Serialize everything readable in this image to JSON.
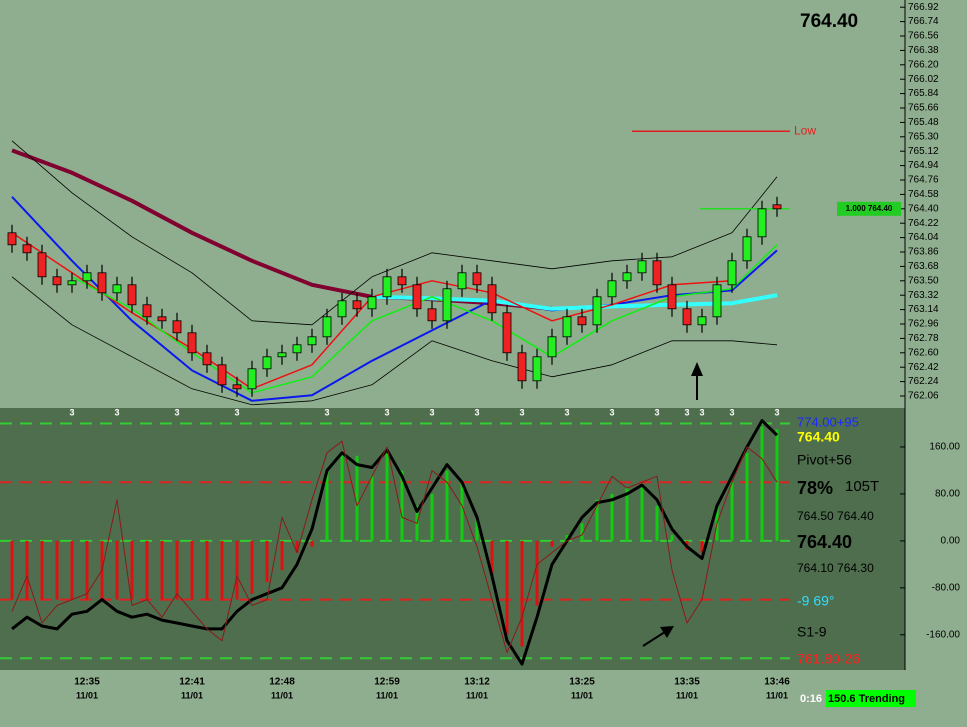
{
  "chart_data": [
    {
      "type": "candlestick",
      "price_label": "764.40",
      "open": [
        764.1,
        763.95,
        763.85,
        763.55,
        763.45,
        763.5,
        763.6,
        763.35,
        763.45,
        763.2,
        763.05,
        763.0,
        762.85,
        762.6,
        762.45,
        762.2,
        762.15,
        762.4,
        762.55,
        762.6,
        762.7,
        762.8,
        763.05,
        763.25,
        763.15,
        763.3,
        763.55,
        763.45,
        763.15,
        763.0,
        763.4,
        763.6,
        763.45,
        763.1,
        762.6,
        762.25,
        762.55,
        762.8,
        763.05,
        762.95,
        763.3,
        763.5,
        763.6,
        763.75,
        763.45,
        763.15,
        762.95,
        763.05,
        763.45,
        763.75,
        764.05,
        764.45
      ],
      "high": [
        764.2,
        764.05,
        763.95,
        763.65,
        763.6,
        763.7,
        763.7,
        763.55,
        763.55,
        763.3,
        763.15,
        763.1,
        762.95,
        762.7,
        762.55,
        762.3,
        762.5,
        762.65,
        762.7,
        762.8,
        762.9,
        763.15,
        763.35,
        763.35,
        763.4,
        763.65,
        763.65,
        763.55,
        763.25,
        763.5,
        763.7,
        763.7,
        763.55,
        763.2,
        762.7,
        762.65,
        762.9,
        763.15,
        763.15,
        763.4,
        763.6,
        763.7,
        763.85,
        763.85,
        763.55,
        763.25,
        763.15,
        763.55,
        763.85,
        764.15,
        764.5,
        764.55
      ],
      "low": [
        763.85,
        763.75,
        763.45,
        763.35,
        763.35,
        763.4,
        763.25,
        763.25,
        763.1,
        762.95,
        762.9,
        762.75,
        762.5,
        762.35,
        762.1,
        762.05,
        762.05,
        762.3,
        762.45,
        762.5,
        762.6,
        762.7,
        762.95,
        763.05,
        763.05,
        763.2,
        763.35,
        763.05,
        762.9,
        762.9,
        763.3,
        763.35,
        763.0,
        762.5,
        762.15,
        762.15,
        762.45,
        762.7,
        762.85,
        762.85,
        763.2,
        763.4,
        763.5,
        763.35,
        763.05,
        762.85,
        762.85,
        762.95,
        763.35,
        763.65,
        763.95,
        764.3
      ],
      "close": [
        763.95,
        763.85,
        763.55,
        763.45,
        763.5,
        763.6,
        763.35,
        763.45,
        763.2,
        763.05,
        763.0,
        762.85,
        762.6,
        762.45,
        762.2,
        762.15,
        762.4,
        762.55,
        762.6,
        762.7,
        762.8,
        763.05,
        763.25,
        763.15,
        763.3,
        763.55,
        763.45,
        763.15,
        763.0,
        763.4,
        763.6,
        763.45,
        763.1,
        762.6,
        762.25,
        762.55,
        762.8,
        763.05,
        762.95,
        763.3,
        763.5,
        763.6,
        763.75,
        763.45,
        763.15,
        762.95,
        763.05,
        763.45,
        763.75,
        764.05,
        764.4,
        764.4
      ],
      "up_color": "#22ee22",
      "down_color": "#ee2222",
      "ylim": [
        761.91,
        767.01
      ],
      "yticks": [
        766.92,
        766.74,
        766.56,
        766.38,
        {
          "value": 766.2,
          "label": "766.20"
        },
        766.02,
        765.84,
        765.66,
        765.48,
        {
          "value": 765.3,
          "label": "765.30"
        },
        765.12,
        764.94,
        764.76,
        764.58,
        {
          "value": 764.4,
          "label": "764.40"
        },
        764.22,
        764.04,
        763.86,
        763.68,
        {
          "value": 763.5,
          "label": "763.50"
        },
        763.32,
        763.14,
        762.96,
        762.78,
        {
          "value": 762.6,
          "label": "762.60"
        },
        762.42,
        762.24,
        762.06
      ],
      "overlay_x": [
        0,
        4,
        8,
        12,
        16,
        20,
        24,
        28,
        32,
        36,
        40,
        44,
        48,
        51
      ],
      "overlays": [
        {
          "color": "#800030",
          "values": [
            765.13,
            764.85,
            764.5,
            764.1,
            763.75,
            763.45,
            763.3,
            763.27,
            763.22,
            763.15,
            null,
            null,
            null,
            null
          ]
        },
        {
          "color": "#0a1aee",
          "values": [
            764.55,
            763.75,
            763.0,
            762.38,
            762.0,
            762.07,
            762.5,
            762.88,
            763.26,
            763.13,
            763.2,
            763.32,
            763.38,
            763.88
          ]
        },
        {
          "color": "#33ffff",
          "values": [
            null,
            null,
            null,
            null,
            null,
            null,
            763.3,
            763.28,
            763.25,
            763.15,
            763.18,
            763.2,
            763.22,
            763.32
          ]
        },
        {
          "color": "#ee1111",
          "values": [
            764.1,
            763.6,
            763.1,
            762.65,
            762.15,
            762.45,
            763.3,
            763.5,
            763.35,
            763.0,
            763.2,
            763.45,
            763.5,
            null
          ]
        },
        {
          "color": "#11ee11",
          "values": [
            null,
            763.55,
            763.15,
            762.6,
            762.1,
            762.3,
            763.0,
            763.3,
            763.0,
            762.55,
            763.0,
            763.3,
            763.4,
            763.95
          ]
        },
        {
          "color": "#000000",
          "values": [
            765.25,
            764.6,
            764.05,
            763.6,
            763.0,
            762.95,
            763.55,
            763.85,
            763.75,
            763.65,
            763.75,
            763.8,
            764.1,
            764.8
          ]
        },
        {
          "color": "#000000",
          "values": [
            763.55,
            762.95,
            762.55,
            762.15,
            761.95,
            762.0,
            762.2,
            762.75,
            762.5,
            762.3,
            762.45,
            762.75,
            762.75,
            762.7
          ]
        }
      ],
      "hlines": [
        {
          "value": 765.37,
          "color": "#e02020",
          "label": "Low"
        },
        {
          "value": 764.4,
          "color": "#22dd22",
          "label": "1.000 764.40"
        }
      ]
    },
    {
      "type": "oscillator",
      "categories": [
        null,
        null,
        null,
        null,
        null,
        "12:35",
        null,
        null,
        null,
        null,
        null,
        null,
        "12:41",
        null,
        null,
        null,
        null,
        null,
        "12:48",
        null,
        null,
        null,
        null,
        null,
        null,
        "12:59",
        null,
        null,
        null,
        null,
        null,
        "13:12",
        null,
        null,
        null,
        null,
        null,
        null,
        "13:25",
        null,
        null,
        null,
        null,
        null,
        null,
        "13:35",
        null,
        null,
        null,
        null,
        null,
        "13:46"
      ],
      "dates": [
        null,
        null,
        null,
        null,
        null,
        "11/01",
        null,
        null,
        null,
        null,
        null,
        null,
        "11/01",
        null,
        null,
        null,
        null,
        null,
        "11/01",
        null,
        null,
        null,
        null,
        null,
        null,
        "11/01",
        null,
        null,
        null,
        null,
        null,
        "11/01",
        null,
        null,
        null,
        null,
        null,
        null,
        "11/01",
        null,
        null,
        null,
        null,
        null,
        null,
        "11/01",
        null,
        null,
        null,
        null,
        null,
        "11/01"
      ],
      "ylim": [
        -220,
        223
      ],
      "yticks": [
        {
          "value": 160,
          "label": "160.00"
        },
        {
          "value": 80,
          "label": "80.00"
        },
        {
          "value": 0,
          "label": "0.00"
        },
        {
          "value": -80,
          "label": "-80.00"
        },
        {
          "value": -160,
          "label": "-160.00"
        }
      ],
      "levels": [
        {
          "value": 200,
          "color": "#33cc33"
        },
        {
          "value": 100,
          "color": "#dd2222"
        },
        {
          "value": 0,
          "color": "#33cc33"
        },
        {
          "value": -100,
          "color": "#dd2222"
        },
        {
          "value": -200,
          "color": "#33cc33"
        }
      ],
      "histogram": {
        "positive_color": "#11cc11",
        "negative_color": "#dd1111",
        "values": [
          -100,
          -100,
          -100,
          -100,
          -100,
          -100,
          -100,
          -100,
          -100,
          -100,
          -100,
          -100,
          -100,
          -100,
          -100,
          -100,
          -90,
          -70,
          -50,
          -20,
          -10,
          120,
          150,
          145,
          110,
          150,
          120,
          60,
          80,
          120,
          100,
          40,
          -60,
          -160,
          -180,
          -110,
          -10,
          10,
          30,
          70,
          80,
          90,
          95,
          60,
          10,
          -15,
          -20,
          60,
          100,
          150,
          195,
          190
        ]
      },
      "series": [
        {
          "color": "#000000",
          "values": [
            -150,
            -130,
            -145,
            -150,
            -125,
            -120,
            -100,
            -120,
            -130,
            -125,
            -135,
            -140,
            -145,
            -150,
            -150,
            -120,
            -100,
            -90,
            -80,
            -40,
            20,
            120,
            150,
            130,
            125,
            155,
            110,
            50,
            90,
            130,
            100,
            40,
            -60,
            -170,
            -210,
            -130,
            -40,
            0,
            40,
            65,
            70,
            80,
            95,
            70,
            20,
            -10,
            -30,
            60,
            110,
            160,
            205,
            180
          ]
        },
        {
          "color": "#8b1a1a",
          "values": [
            -120,
            -60,
            -140,
            -110,
            -100,
            -90,
            -50,
            70,
            -110,
            -100,
            -130,
            -90,
            -120,
            -150,
            -170,
            -60,
            -110,
            -100,
            40,
            -20,
            70,
            150,
            170,
            60,
            110,
            160,
            40,
            30,
            120,
            100,
            60,
            -10,
            -100,
            -190,
            -130,
            -40,
            -20,
            0,
            10,
            60,
            110,
            90,
            100,
            110,
            -50,
            -140,
            -100,
            30,
            100,
            160,
            140,
            100
          ]
        }
      ],
      "markers": [
        {
          "bar": 4,
          "label": "3"
        },
        {
          "bar": 7,
          "label": "3"
        },
        {
          "bar": 11,
          "label": "3"
        },
        {
          "bar": 15,
          "label": "3"
        },
        {
          "bar": 21,
          "label": "3"
        },
        {
          "bar": 25,
          "label": "3"
        },
        {
          "bar": 28,
          "label": "3"
        },
        {
          "bar": 31,
          "label": "3"
        },
        {
          "bar": 34,
          "label": "3"
        },
        {
          "bar": 37,
          "label": "3"
        },
        {
          "bar": 40,
          "label": "3"
        },
        {
          "bar": 43,
          "label": "3"
        },
        {
          "bar": 45,
          "label": "3"
        },
        {
          "bar": 46,
          "label": "3"
        },
        {
          "bar": 48,
          "label": "3"
        },
        {
          "bar": 51,
          "label": "3"
        }
      ],
      "side_labels": [
        {
          "text": "774.00+95",
          "color": "#1a2aff"
        },
        {
          "text": "764.40",
          "color": "#ffff00"
        },
        {
          "text": "Pivot+56",
          "color": "#000000"
        },
        {
          "text": "78%",
          "color": "#000000"
        },
        {
          "text": "105T",
          "color": "#000000"
        },
        {
          "text": "764.50 764.40",
          "color": "#000000"
        },
        {
          "text": "764.40",
          "color": "#000000"
        },
        {
          "text": "764.10 764.30",
          "color": "#000000"
        },
        {
          "text": "-9  69°",
          "color": "#33ddff"
        },
        {
          "text": "S1-9",
          "color": "#000000"
        },
        {
          "text": "761.80-26",
          "color": "#ff2222"
        }
      ],
      "status": {
        "time": "0:16",
        "trend": "150.6 Trending"
      }
    }
  ]
}
